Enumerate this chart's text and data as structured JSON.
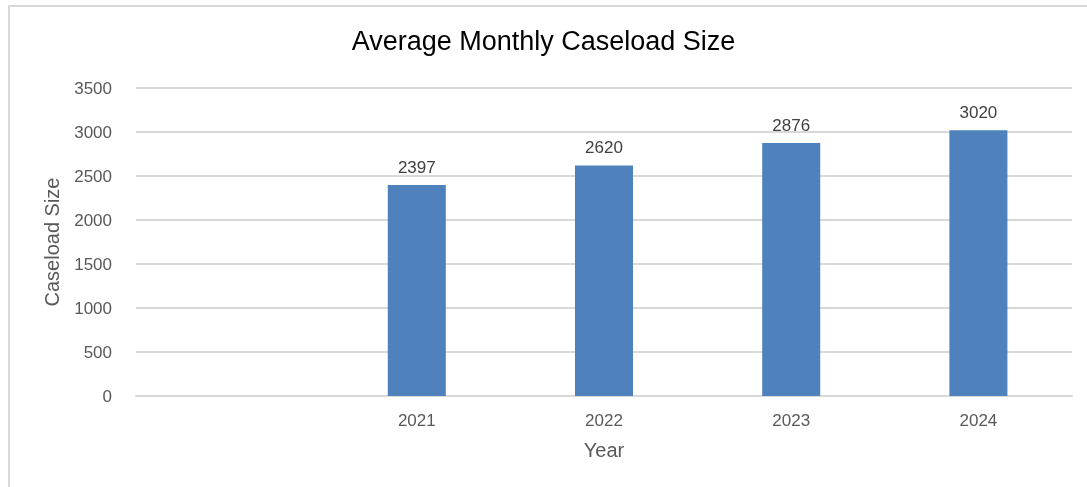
{
  "chart_data": {
    "type": "bar",
    "title": "Average Monthly Caseload Size",
    "xlabel": "Year",
    "ylabel": "Caseload Size",
    "categories": [
      null,
      "2021",
      "2022",
      "2023",
      "2024"
    ],
    "values": [
      null,
      2397,
      2620,
      2876,
      3020
    ],
    "color": "#4f81bd",
    "ylim": [
      0,
      3500
    ],
    "yticks": [
      0,
      500,
      1000,
      1500,
      2000,
      2500,
      3000,
      3500
    ],
    "grid": "y",
    "data_labels": true
  }
}
